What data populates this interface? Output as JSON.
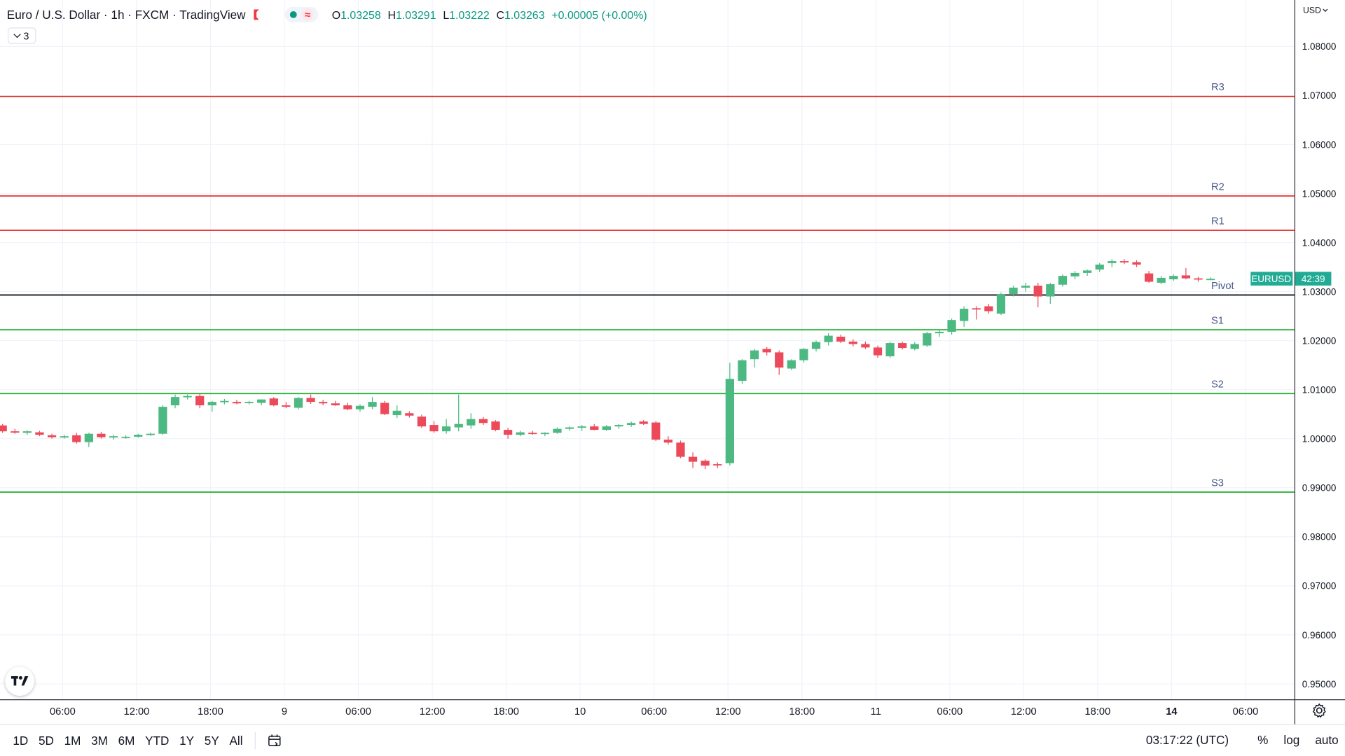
{
  "header": {
    "title": "Euro / U.S. Dollar · 1h · FXCM · TradingView",
    "ohlc": {
      "o_label": "O",
      "o": "1.03258",
      "h_label": "H",
      "h": "1.03291",
      "l_label": "L",
      "l": "1.03222",
      "c_label": "C",
      "c": "1.03263",
      "change": "+0.00005 (+0.00%)"
    },
    "indicator_count": "3",
    "currency": "USD"
  },
  "colors": {
    "up": "#4cb982",
    "down": "#ec4a5a",
    "support": "#1fae2e",
    "resistance": "#e8231f",
    "pivot": "#131722",
    "grid": "#f0f3fa",
    "label_bg": "#22ab94"
  },
  "chart_data": {
    "type": "candlestick",
    "symbol_label": "EURUSD",
    "countdown": "42:39",
    "y_axis": {
      "ticks": [
        "1.08000",
        "1.07000",
        "1.06000",
        "1.05000",
        "1.04000",
        "1.03000",
        "1.02000",
        "1.01000",
        "1.00000",
        "0.99000",
        "0.98000",
        "0.97000",
        "0.96000",
        "0.95000"
      ],
      "range": [
        0.9445,
        1.0895
      ]
    },
    "x_axis": {
      "ticks": [
        "06:00",
        "12:00",
        "18:00",
        "9",
        "06:00",
        "12:00",
        "18:00",
        "10",
        "06:00",
        "12:00",
        "18:00",
        "11",
        "06:00",
        "12:00",
        "18:00",
        "14",
        "06:00"
      ]
    },
    "levels": [
      {
        "name": "R3",
        "value": 1.0698,
        "kind": "resistance"
      },
      {
        "name": "R2",
        "value": 1.0495,
        "kind": "resistance"
      },
      {
        "name": "R1",
        "value": 1.0425,
        "kind": "resistance"
      },
      {
        "name": "Pivot",
        "value": 1.0293,
        "kind": "pivot"
      },
      {
        "name": "S1",
        "value": 1.0222,
        "kind": "support"
      },
      {
        "name": "S2",
        "value": 1.0092,
        "kind": "support"
      },
      {
        "name": "S3",
        "value": 0.9891,
        "kind": "support"
      }
    ],
    "candles": [
      [
        1.0027,
        1.003,
        1.0012,
        1.0015
      ],
      [
        1.0015,
        1.002,
        1.001,
        1.0013
      ],
      [
        1.0012,
        1.0017,
        1.0008,
        1.0015
      ],
      [
        1.0013,
        1.0016,
        1.0005,
        1.0008
      ],
      [
        1.0007,
        1.001,
        1.0,
        1.0003
      ],
      [
        1.0003,
        1.0008,
        1.0,
        1.0005
      ],
      [
        1.0007,
        1.0012,
        0.999,
        0.9993
      ],
      [
        0.9993,
        1.0012,
        0.9983,
        1.001
      ],
      [
        1.001,
        1.0014,
        1.0,
        1.0003
      ],
      [
        1.0003,
        1.0008,
        0.9998,
        1.0005
      ],
      [
        1.0003,
        1.0007,
        1.0,
        1.0004
      ],
      [
        1.0004,
        1.001,
        1.0002,
        1.0008
      ],
      [
        1.0008,
        1.0012,
        1.0006,
        1.001
      ],
      [
        1.001,
        1.0068,
        1.0008,
        1.0065
      ],
      [
        1.0068,
        1.009,
        1.0062,
        1.0085
      ],
      [
        1.0085,
        1.009,
        1.008,
        1.0087
      ],
      [
        1.0087,
        1.0093,
        1.0062,
        1.0068
      ],
      [
        1.0068,
        1.0077,
        1.0055,
        1.0075
      ],
      [
        1.0075,
        1.0081,
        1.007,
        1.0077
      ],
      [
        1.0075,
        1.0079,
        1.007,
        1.0072
      ],
      [
        1.0073,
        1.0077,
        1.007,
        1.0075
      ],
      [
        1.0073,
        1.008,
        1.0068,
        1.008
      ],
      [
        1.0082,
        1.0085,
        1.0066,
        1.0068
      ],
      [
        1.0068,
        1.0075,
        1.0062,
        1.0065
      ],
      [
        1.0063,
        1.0085,
        1.006,
        1.0083
      ],
      [
        1.0083,
        1.009,
        1.0071,
        1.0075
      ],
      [
        1.0075,
        1.0079,
        1.0068,
        1.0072
      ],
      [
        1.0072,
        1.0077,
        1.0067,
        1.0068
      ],
      [
        1.0068,
        1.0073,
        1.0058,
        1.006
      ],
      [
        1.006,
        1.007,
        1.0055,
        1.0067
      ],
      [
        1.0065,
        1.0085,
        1.006,
        1.0075
      ],
      [
        1.0073,
        1.0077,
        1.0048,
        1.005
      ],
      [
        1.0048,
        1.0068,
        1.0042,
        1.0057
      ],
      [
        1.0052,
        1.0056,
        1.0043,
        1.0047
      ],
      [
        1.0045,
        1.0049,
        1.0022,
        1.0025
      ],
      [
        1.0028,
        1.0036,
        1.0012,
        1.0015
      ],
      [
        1.0015,
        1.004,
        1.001,
        1.0025
      ],
      [
        1.0023,
        1.009,
        1.0015,
        1.003
      ],
      [
        1.0027,
        1.0052,
        1.002,
        1.004
      ],
      [
        1.004,
        1.0044,
        1.0028,
        1.0032
      ],
      [
        1.0035,
        1.0038,
        1.0015,
        1.0018
      ],
      [
        1.0018,
        1.0022,
        1.0,
        1.0008
      ],
      [
        1.0008,
        1.0016,
        1.0005,
        1.0013
      ],
      [
        1.0012,
        1.0016,
        1.0008,
        1.001
      ],
      [
        1.001,
        1.0013,
        1.0005,
        1.0012
      ],
      [
        1.0012,
        1.0023,
        1.001,
        1.002
      ],
      [
        1.002,
        1.0025,
        1.0016,
        1.0023
      ],
      [
        1.0023,
        1.0028,
        1.0016,
        1.0025
      ],
      [
        1.0025,
        1.003,
        1.0017,
        1.0018
      ],
      [
        1.0018,
        1.0028,
        1.0016,
        1.0025
      ],
      [
        1.0025,
        1.003,
        1.002,
        1.0028
      ],
      [
        1.0028,
        1.0035,
        1.0024,
        1.0032
      ],
      [
        1.0035,
        1.0038,
        1.0028,
        1.003
      ],
      [
        1.0033,
        1.0036,
        0.9995,
        0.9998
      ],
      [
        0.9998,
        1.0005,
        0.9988,
        0.9992
      ],
      [
        0.9992,
        0.9996,
        0.996,
        0.9963
      ],
      [
        0.9963,
        0.9972,
        0.994,
        0.9953
      ],
      [
        0.9955,
        0.9958,
        0.9938,
        0.9945
      ],
      [
        0.9948,
        0.9952,
        0.994,
        0.9946
      ],
      [
        0.995,
        1.0155,
        0.9945,
        1.0122
      ],
      [
        1.0118,
        1.0162,
        1.0112,
        1.016
      ],
      [
        1.0162,
        1.0183,
        1.0145,
        1.018
      ],
      [
        1.0183,
        1.0187,
        1.017,
        1.0176
      ],
      [
        1.0176,
        1.018,
        1.013,
        1.0145
      ],
      [
        1.0143,
        1.0162,
        1.014,
        1.016
      ],
      [
        1.016,
        1.0185,
        1.0155,
        1.0183
      ],
      [
        1.0183,
        1.02,
        1.0178,
        1.0197
      ],
      [
        1.0197,
        1.0215,
        1.019,
        1.021
      ],
      [
        1.0208,
        1.0212,
        1.0195,
        1.0198
      ],
      [
        1.0198,
        1.0203,
        1.0188,
        1.0193
      ],
      [
        1.0193,
        1.0198,
        1.0183,
        1.0186
      ],
      [
        1.0186,
        1.019,
        1.0165,
        1.017
      ],
      [
        1.0168,
        1.0198,
        1.0165,
        1.0195
      ],
      [
        1.0195,
        1.0198,
        1.0182,
        1.0185
      ],
      [
        1.0183,
        1.0197,
        1.018,
        1.0193
      ],
      [
        1.019,
        1.0218,
        1.0187,
        1.0215
      ],
      [
        1.0215,
        1.0222,
        1.0208,
        1.0218
      ],
      [
        1.0218,
        1.0245,
        1.0212,
        1.0242
      ],
      [
        1.024,
        1.027,
        1.0228,
        1.0265
      ],
      [
        1.0266,
        1.027,
        1.0243,
        1.0265
      ],
      [
        1.027,
        1.0275,
        1.0255,
        1.026
      ],
      [
        1.0255,
        1.0298,
        1.0252,
        1.0295
      ],
      [
        1.0295,
        1.0312,
        1.029,
        1.0308
      ],
      [
        1.0308,
        1.0318,
        1.03,
        1.0312
      ],
      [
        1.0312,
        1.0318,
        1.0268,
        1.029
      ],
      [
        1.029,
        1.0318,
        1.0275,
        1.0315
      ],
      [
        1.0314,
        1.0335,
        1.031,
        1.0332
      ],
      [
        1.0331,
        1.0342,
        1.0325,
        1.0338
      ],
      [
        1.0338,
        1.0345,
        1.0332,
        1.0343
      ],
      [
        1.0345,
        1.0358,
        1.034,
        1.0355
      ],
      [
        1.0358,
        1.0366,
        1.035,
        1.0362
      ],
      [
        1.0362,
        1.0366,
        1.0356,
        1.036
      ],
      [
        1.036,
        1.0364,
        1.035,
        1.0355
      ],
      [
        1.0337,
        1.0342,
        1.0318,
        1.032
      ],
      [
        1.0318,
        1.0332,
        1.0315,
        1.0328
      ],
      [
        1.0325,
        1.0335,
        1.0322,
        1.0332
      ],
      [
        1.0333,
        1.0348,
        1.0325,
        1.0327
      ],
      [
        1.0327,
        1.033,
        1.032,
        1.0325
      ],
      [
        1.0325,
        1.0329,
        1.0323,
        1.0326
      ]
    ]
  },
  "bottom": {
    "ranges": [
      "1D",
      "5D",
      "1M",
      "3M",
      "6M",
      "YTD",
      "1Y",
      "5Y",
      "All"
    ],
    "clock": "03:17:22 (UTC)",
    "pct": "%",
    "log": "log",
    "auto": "auto"
  }
}
